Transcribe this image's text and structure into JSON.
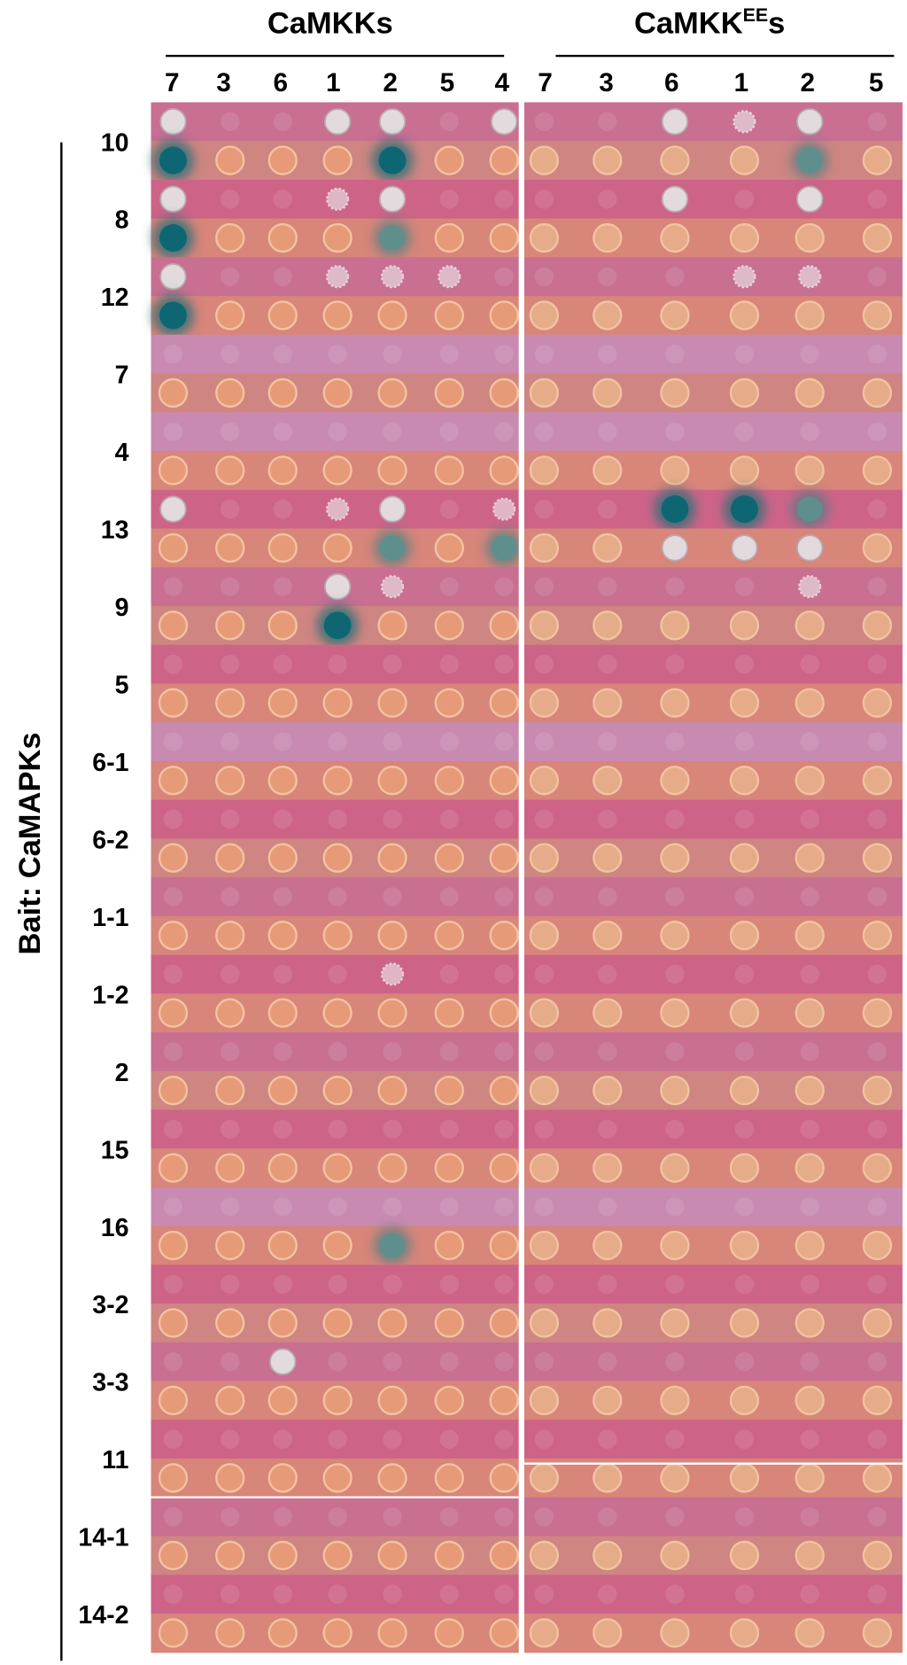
{
  "header": {
    "left_title": "CaMKKs",
    "right_title_main": "CaMKK",
    "right_title_sup": "EE",
    "right_title_end": "s",
    "left_columns": [
      "7",
      "3",
      "6",
      "1",
      "2",
      "5",
      "4"
    ],
    "right_columns": [
      "7",
      "3",
      "6",
      "1",
      "2",
      "5"
    ]
  },
  "y_label": "Bait: CaMAPKs",
  "rows": [
    "10",
    "8",
    "12",
    "7",
    "4",
    "13",
    "9",
    "5",
    "6-1",
    "6-2",
    "1-1",
    "1-2",
    "2",
    "15",
    "16",
    "3-2",
    "3-3",
    "11",
    "14-1",
    "14-2"
  ]
}
